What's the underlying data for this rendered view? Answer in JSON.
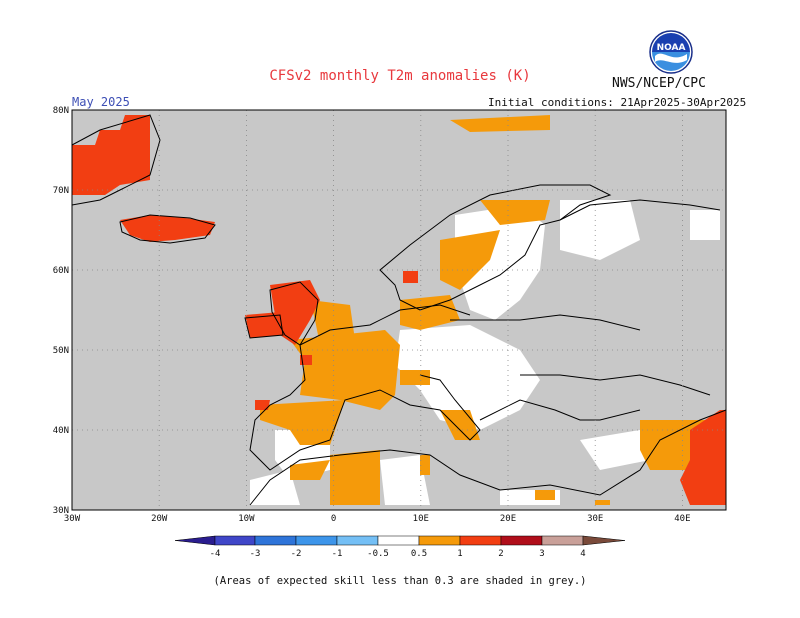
{
  "title": "CFSv2 monthly T2m anomalies (K)",
  "organization": "NWS/NCEP/CPC",
  "logo_text": "NOAA",
  "period": "May 2025",
  "initial_conditions": "Initial conditions: 21Apr2025-30Apr2025",
  "footnote": "(Areas of expected skill less than 0.3 are shaded in grey.)",
  "map": {
    "lon_range": [
      -30,
      45
    ],
    "lat_range": [
      30,
      80
    ],
    "lat_ticks": [
      {
        "value": 80,
        "label": "80N"
      },
      {
        "value": 70,
        "label": "70N"
      },
      {
        "value": 60,
        "label": "60N"
      },
      {
        "value": 50,
        "label": "50N"
      },
      {
        "value": 40,
        "label": "40N"
      },
      {
        "value": 30,
        "label": "30N"
      }
    ],
    "lon_ticks": [
      {
        "value": -30,
        "label": "30W"
      },
      {
        "value": -20,
        "label": "20W"
      },
      {
        "value": -10,
        "label": "10W"
      },
      {
        "value": 0,
        "label": "0"
      },
      {
        "value": 10,
        "label": "10E"
      },
      {
        "value": 20,
        "label": "20E"
      },
      {
        "value": 30,
        "label": "30E"
      },
      {
        "value": 40,
        "label": "40E"
      }
    ],
    "grid_lines": "dotted",
    "low_skill_color": "#c8c8c8"
  },
  "colorbar": {
    "labels": [
      "-4",
      "-3",
      "-2",
      "-1",
      "-0.5",
      "0.5",
      "1",
      "2",
      "3",
      "4"
    ],
    "colors": [
      "#2a1d8f",
      "#3f46c8",
      "#2e74d9",
      "#3d95ea",
      "#74bff5",
      "#ffffff",
      "#f59a0a",
      "#f23e12",
      "#b00e1a",
      "#c9a099",
      "#7a4a3a"
    ]
  }
}
